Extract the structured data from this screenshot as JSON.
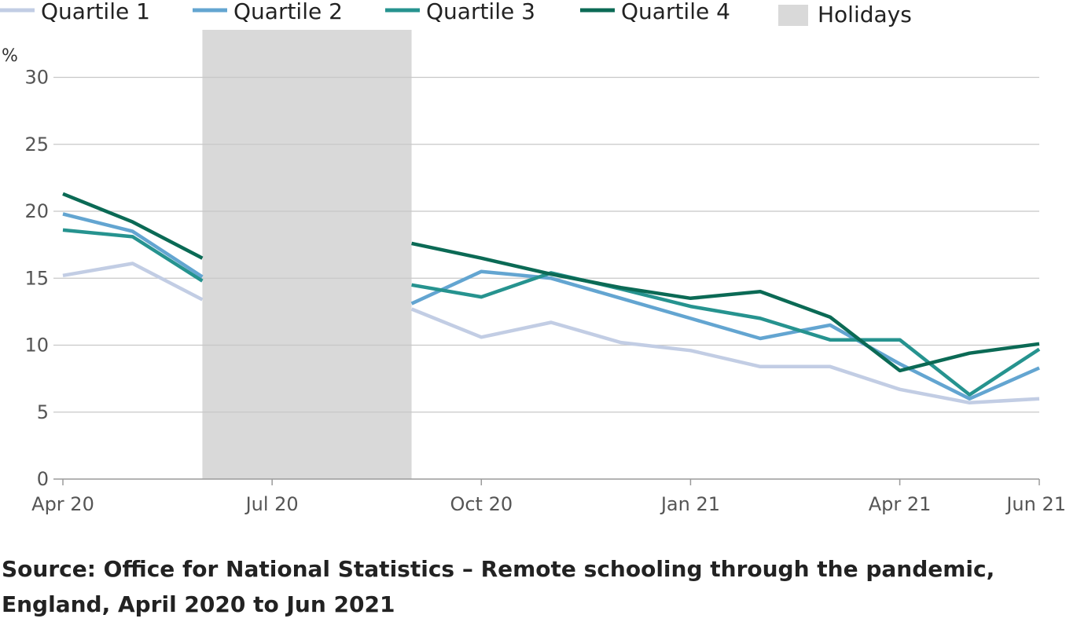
{
  "chart_data": {
    "type": "line",
    "ylabel": "%",
    "ylim": [
      0,
      32
    ],
    "yticks": [
      "0",
      "5",
      "10",
      "15",
      "20",
      "25",
      "30"
    ],
    "x": [
      "2020-04",
      "2020-05",
      "2020-06",
      "2020-07",
      "2020-08",
      "2020-09",
      "2020-10",
      "2020-11",
      "2020-12",
      "2021-01",
      "2021-02",
      "2021-03",
      "2021-04",
      "2021-05",
      "2021-06"
    ],
    "xtick_labels": [
      {
        "x": "2020-04",
        "label": "Apr 20"
      },
      {
        "x": "2020-07",
        "label": "Jul 20"
      },
      {
        "x": "2020-10",
        "label": "Oct 20"
      },
      {
        "x": "2021-01",
        "label": "Jan 21"
      },
      {
        "x": "2021-04",
        "label": "Apr 21"
      },
      {
        "x": "2021-06",
        "label": "Jun 21"
      }
    ],
    "holidays": {
      "label": "Holidays",
      "start": "2020-06",
      "end": "2020-09",
      "color": "#d9d9d9"
    },
    "grid": true,
    "legend_position": "top",
    "series": [
      {
        "name": "Quartile 1",
        "color": "#c2cde4",
        "values": [
          15.2,
          16.1,
          13.4,
          null,
          null,
          12.7,
          10.6,
          11.7,
          10.2,
          9.6,
          8.4,
          8.4,
          6.7,
          5.7,
          6.0
        ]
      },
      {
        "name": "Quartile 2",
        "color": "#63a5d1",
        "values": [
          19.8,
          18.5,
          15.1,
          null,
          null,
          13.1,
          15.5,
          15.0,
          13.5,
          12.0,
          10.5,
          11.5,
          8.6,
          6.0,
          8.3
        ]
      },
      {
        "name": "Quartile 3",
        "color": "#26938f",
        "values": [
          18.6,
          18.1,
          14.8,
          null,
          null,
          14.5,
          13.6,
          15.4,
          14.2,
          12.9,
          12.0,
          10.4,
          10.4,
          6.3,
          9.7
        ]
      },
      {
        "name": "Quartile 4",
        "color": "#0b6a55",
        "values": [
          21.3,
          19.2,
          16.5,
          null,
          null,
          17.6,
          16.5,
          15.3,
          14.3,
          13.5,
          14.0,
          12.1,
          8.1,
          9.4,
          10.1
        ]
      }
    ]
  },
  "source_text": "Source: Office for National Statistics – Remote schooling through the pandemic, England, April 2020 to Jun 2021"
}
